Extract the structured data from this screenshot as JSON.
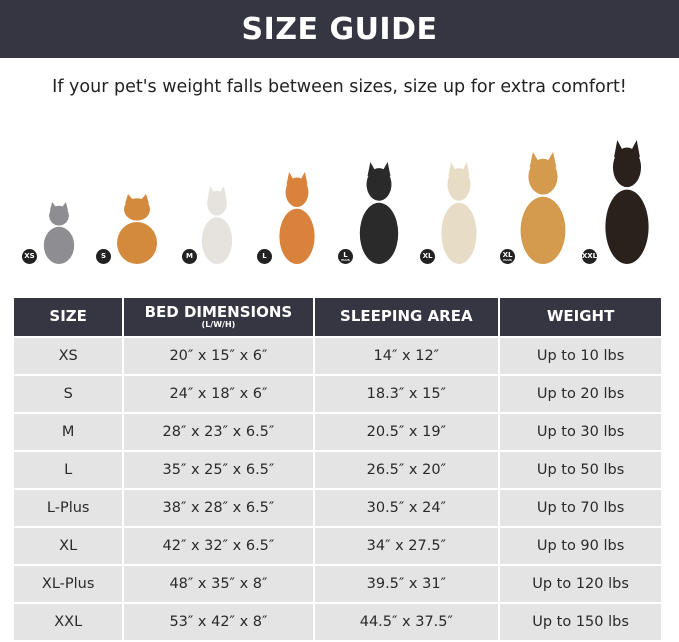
{
  "header": {
    "title": "SIZE GUIDE"
  },
  "subtitle": "If your pet's weight falls between sizes, size up for extra comfort!",
  "pets": [
    {
      "badge": "XS",
      "badge_sub": "",
      "animal": "cat",
      "color": "#8d8d92"
    },
    {
      "badge": "S",
      "badge_sub": "",
      "animal": "pomeranian",
      "color": "#d48a3c"
    },
    {
      "badge": "M",
      "badge_sub": "",
      "animal": "french-bulldog",
      "color": "#e6e3df"
    },
    {
      "badge": "L",
      "badge_sub": "",
      "animal": "shiba-inu",
      "color": "#d9823b"
    },
    {
      "badge": "L",
      "badge_sub": "PLUS",
      "animal": "border-collie",
      "color": "#2a2a2a"
    },
    {
      "badge": "XL",
      "badge_sub": "",
      "animal": "labrador",
      "color": "#e7dcc6"
    },
    {
      "badge": "XL",
      "badge_sub": "PLUS",
      "animal": "golden-retriever",
      "color": "#d49a4d"
    },
    {
      "badge": "XXL",
      "badge_sub": "",
      "animal": "doberman",
      "color": "#2b211c"
    }
  ],
  "table": {
    "headers": [
      {
        "label": "SIZE",
        "sub": ""
      },
      {
        "label": "BED DIMENSIONS",
        "sub": "(L/W/H)"
      },
      {
        "label": "SLEEPING AREA",
        "sub": ""
      },
      {
        "label": "WEIGHT",
        "sub": ""
      }
    ],
    "rows": [
      [
        "XS",
        "20″ x 15″ x 6″",
        "14″ x 12″",
        "Up to 10 lbs"
      ],
      [
        "S",
        "24″ x 18″ x 6″",
        "18.3″ x 15″",
        "Up to 20 lbs"
      ],
      [
        "M",
        "28″ x 23″ x 6.5″",
        "20.5″ x 19″",
        "Up to 30 lbs"
      ],
      [
        "L",
        "35″ x 25″ x 6.5″",
        "26.5″ x 20″",
        "Up to 50 lbs"
      ],
      [
        "L-Plus",
        "38″ x 28″ x 6.5″",
        "30.5″ x 24″",
        "Up to 70 lbs"
      ],
      [
        "XL",
        "42″ x 32″ x 6.5″",
        "34″ x 27.5″",
        "Up to 90 lbs"
      ],
      [
        "XL-Plus",
        "48″ x 35″ x 8″",
        "39.5″ x 31″",
        "Up to 120 lbs"
      ],
      [
        "XXL",
        "53″ x 42″ x 8″",
        "44.5″ x 37.5″",
        "Up to 150 lbs"
      ]
    ]
  },
  "colors": {
    "header_bg": "#363542",
    "cell_bg": "#e4e4e4"
  }
}
